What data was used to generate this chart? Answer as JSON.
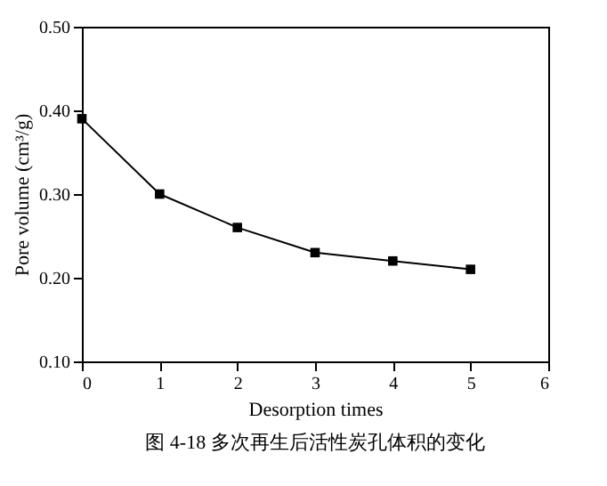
{
  "chart_data": {
    "type": "line",
    "xlabel": "Desorption times",
    "ylabel": "Pore volume (cm³/g)",
    "annotations": [
      "图 4-18    多次再生后活性炭孔体积的变化"
    ],
    "x": [
      0,
      1,
      2,
      3,
      4,
      5
    ],
    "series": [
      {
        "color": "#000000",
        "values": [
          0.39,
          0.3,
          0.26,
          0.23,
          0.22,
          0.21
        ],
        "errors": [
          0.005,
          0.005,
          0.005,
          0.005,
          0.005,
          0.005
        ]
      }
    ],
    "xlim": [
      0,
      6
    ],
    "xticks": [
      0,
      1,
      2,
      3,
      4,
      5,
      6
    ],
    "ylim": [
      0.1,
      0.5
    ],
    "yticks": [
      {
        "value": 0.1,
        "label": "0.10"
      },
      {
        "value": 0.2,
        "label": "0.20"
      },
      {
        "value": 0.3,
        "label": "0.30"
      },
      {
        "value": 0.4,
        "label": "0.40"
      },
      {
        "value": 0.5,
        "label": "0.50"
      }
    ],
    "marker": "square",
    "line_style": "solid"
  }
}
